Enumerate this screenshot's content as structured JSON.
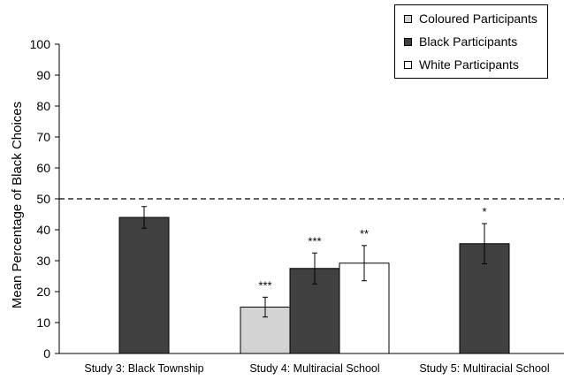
{
  "chart_data": {
    "type": "bar",
    "title": "",
    "xlabel": "",
    "ylabel": "Mean Percentage of Black Choices",
    "ylim": [
      0,
      100
    ],
    "yticks": [
      0,
      10,
      20,
      30,
      40,
      50,
      60,
      70,
      80,
      90,
      100
    ],
    "grid": false,
    "reference_line": {
      "y": 50,
      "style": "dashed"
    },
    "legend_position": "top-right",
    "categories": [
      "Study 3:  Black Township",
      "Study 4:  Multiracial School",
      "Study 5:  Multiracial School"
    ],
    "series": [
      {
        "name": "Coloured Participants",
        "color": "#d3d3d3",
        "values": [
          null,
          15.0,
          null
        ],
        "error": [
          null,
          3.2,
          null
        ],
        "annotations": [
          null,
          "***",
          null
        ]
      },
      {
        "name": "Black Participants",
        "color": "#404040",
        "values": [
          44.0,
          27.5,
          35.5
        ],
        "error": [
          3.5,
          5.0,
          6.5
        ],
        "annotations": [
          null,
          "***",
          "*"
        ]
      },
      {
        "name": "White Participants",
        "color": "#ffffff",
        "values": [
          null,
          29.2,
          null
        ],
        "error": [
          null,
          5.7,
          null
        ],
        "annotations": [
          null,
          "**",
          null
        ]
      }
    ]
  }
}
